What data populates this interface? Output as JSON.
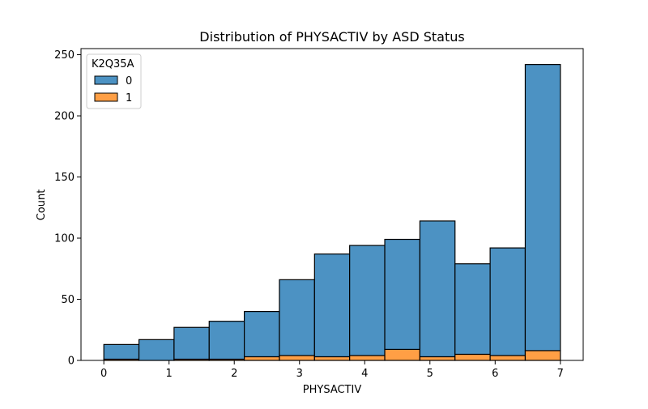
{
  "chart_data": {
    "type": "bar",
    "stacked": true,
    "histogram": true,
    "title": "Distribution of PHYSACTIV by ASD Status",
    "xlabel": "PHYSACTIV",
    "ylabel": "Count",
    "xlim": [
      -0.35,
      7.35
    ],
    "ylim": [
      0,
      255
    ],
    "xticks": [
      0,
      1,
      2,
      3,
      4,
      5,
      6,
      7
    ],
    "yticks": [
      0,
      50,
      100,
      150,
      200,
      250
    ],
    "bin_edges": [
      0,
      0.5385,
      1.0769,
      1.6154,
      2.1538,
      2.6923,
      3.2308,
      3.7692,
      4.3077,
      4.8462,
      5.3846,
      5.9231,
      6.4615,
      7.0
    ],
    "legend": {
      "title": "K2Q35A",
      "position": "upper left"
    },
    "series": [
      {
        "name": "0",
        "color": "#4c92c3",
        "values": [
          12,
          17,
          26,
          31,
          37,
          62,
          84,
          90,
          90,
          111,
          74,
          88,
          234
        ]
      },
      {
        "name": "1",
        "color": "#ff9f45",
        "values": [
          1,
          0,
          1,
          1,
          3,
          4,
          3,
          4,
          9,
          3,
          5,
          4,
          8
        ]
      }
    ],
    "grid": false
  }
}
